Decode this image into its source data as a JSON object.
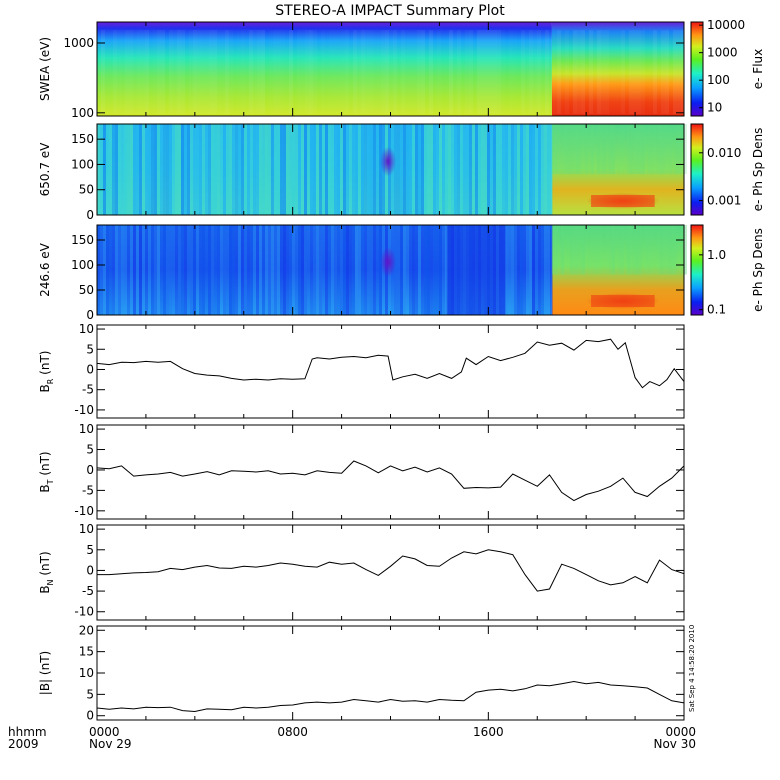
{
  "title": "STEREO-A IMPACT Summary Plot",
  "footer": {
    "left_line1": "hhmm",
    "left_line2": "2009"
  },
  "timestamp_note": "Sat Sep  4 14:58:20 2010",
  "chart_data": [
    {
      "type": "heatmap",
      "name": "swea",
      "ylabel": "SWEA (eV)",
      "colorbar_label": "e- Flux",
      "y_scale": "log",
      "ylim": [
        90,
        2000
      ],
      "yticks": [
        100,
        1000
      ],
      "ytick_labels": [
        "100",
        "1000"
      ],
      "colorbar_scale": "log",
      "colorbar_range": [
        5,
        13000
      ],
      "colorbar_ticks": [
        10,
        100,
        1000,
        10000
      ],
      "colorbar_tick_labels": [
        "10",
        "100",
        "1000",
        "10000"
      ],
      "transition_time_hours": 18.6
    },
    {
      "type": "heatmap",
      "name": "pad650",
      "ylabel": "650.7 eV",
      "colorbar_label": "e- Ph Sp Dens",
      "ylim": [
        0,
        180
      ],
      "yticks": [
        0,
        50,
        100,
        150
      ],
      "ytick_labels": [
        "0",
        "50",
        "100",
        "150"
      ],
      "colorbar_scale": "log",
      "colorbar_range": [
        0.0005,
        0.04
      ],
      "colorbar_ticks": [
        0.001,
        0.01
      ],
      "colorbar_tick_labels": [
        "0.001",
        "0.010"
      ],
      "transition_time_hours": 18.6
    },
    {
      "type": "heatmap",
      "name": "pad246",
      "ylabel": "246.6 eV",
      "colorbar_label": "e- Ph Sp Dens",
      "ylim": [
        0,
        180
      ],
      "yticks": [
        0,
        50,
        100,
        150
      ],
      "ytick_labels": [
        "0",
        "50",
        "100",
        "150"
      ],
      "colorbar_scale": "log",
      "colorbar_range": [
        0.08,
        3.5
      ],
      "colorbar_ticks": [
        0.1,
        1.0
      ],
      "colorbar_tick_labels": [
        "0.1",
        "1.0"
      ],
      "transition_time_hours": 18.6
    },
    {
      "type": "line",
      "name": "br",
      "ylabel_main": "B",
      "ylabel_sub": "R",
      "ylabel_unit": "(nT)",
      "ylim": [
        -12,
        11
      ],
      "yticks": [
        -10,
        -5,
        0,
        5,
        10
      ],
      "ytick_labels": [
        "-10",
        "-5",
        "0",
        "5",
        "10"
      ],
      "x": [
        0,
        0.5,
        1,
        1.5,
        2,
        2.5,
        3,
        3.5,
        4,
        4.5,
        5,
        5.5,
        6,
        6.5,
        7,
        7.5,
        8,
        8.5,
        8.8,
        9,
        9.5,
        10,
        10.5,
        11,
        11.5,
        11.9,
        12.1,
        12.5,
        13,
        13.5,
        14,
        14.5,
        14.9,
        15.1,
        15.5,
        16,
        16.5,
        17,
        17.5,
        18,
        18.5,
        19,
        19.5,
        20,
        20.5,
        21,
        21.3,
        21.6,
        22,
        22.3,
        22.6,
        23,
        23.3,
        23.6,
        24
      ],
      "y": [
        1.5,
        1.2,
        1.8,
        1.7,
        2.0,
        1.8,
        2.0,
        0.2,
        -1.0,
        -1.4,
        -1.6,
        -2.2,
        -2.6,
        -2.4,
        -2.6,
        -2.3,
        -2.4,
        -2.3,
        2.6,
        2.9,
        2.6,
        3.0,
        3.2,
        2.9,
        3.5,
        3.3,
        -2.6,
        -1.8,
        -1.2,
        -2.2,
        -1.0,
        -2.2,
        -0.6,
        2.8,
        1.2,
        3.2,
        2.2,
        3.0,
        4.0,
        6.8,
        6.0,
        6.5,
        4.8,
        7.2,
        6.9,
        7.5,
        5.0,
        6.6,
        -2.0,
        -4.5,
        -3.0,
        -4.0,
        -2.5,
        0.2,
        -3.0
      ]
    },
    {
      "type": "line",
      "name": "bt",
      "ylabel_main": "B",
      "ylabel_sub": "T",
      "ylabel_unit": "(nT)",
      "ylim": [
        -12,
        11
      ],
      "yticks": [
        -10,
        -5,
        0,
        5,
        10
      ],
      "ytick_labels": [
        "-10",
        "-5",
        "0",
        "5",
        "10"
      ],
      "x": [
        0,
        0.5,
        1,
        1.5,
        2,
        2.5,
        3,
        3.5,
        4,
        4.5,
        5,
        5.5,
        6,
        6.5,
        7,
        7.5,
        8,
        8.5,
        9,
        9.5,
        10,
        10.5,
        11,
        11.5,
        12,
        12.5,
        13,
        13.5,
        14,
        14.5,
        15,
        15.5,
        16,
        16.5,
        17,
        17.5,
        18,
        18.5,
        19,
        19.5,
        20,
        20.5,
        21,
        21.5,
        22,
        22.5,
        23,
        23.5,
        24
      ],
      "y": [
        0.5,
        0.3,
        1.0,
        -1.5,
        -1.2,
        -1.0,
        -0.6,
        -1.5,
        -1.0,
        -0.4,
        -1.2,
        -0.2,
        -0.3,
        -0.5,
        -0.2,
        -1.0,
        -0.8,
        -1.2,
        -0.2,
        -0.6,
        -0.8,
        2.2,
        1.0,
        -0.7,
        1.0,
        -0.2,
        0.7,
        -0.5,
        0.5,
        -1.0,
        -4.5,
        -4.3,
        -4.4,
        -4.2,
        -1.0,
        -2.5,
        -4.0,
        -1.2,
        -5.5,
        -7.5,
        -6.0,
        -5.2,
        -4.0,
        -2.0,
        -5.5,
        -6.5,
        -4.0,
        -2.0,
        1.0
      ]
    },
    {
      "type": "line",
      "name": "bn",
      "ylabel_main": "B",
      "ylabel_sub": "N",
      "ylabel_unit": "(nT)",
      "ylim": [
        -12,
        11
      ],
      "yticks": [
        -10,
        -5,
        0,
        5,
        10
      ],
      "ytick_labels": [
        "-10",
        "-5",
        "0",
        "5",
        "10"
      ],
      "x": [
        0,
        0.5,
        1,
        1.5,
        2,
        2.5,
        3,
        3.5,
        4,
        4.5,
        5,
        5.5,
        6,
        6.5,
        7,
        7.5,
        8,
        8.5,
        9,
        9.5,
        10,
        10.5,
        11,
        11.5,
        12,
        12.5,
        13,
        13.5,
        14,
        14.5,
        15,
        15.5,
        16,
        16.5,
        17,
        17.5,
        18,
        18.5,
        19,
        19.5,
        20,
        20.5,
        21,
        21.5,
        22,
        22.5,
        23,
        23.5,
        24
      ],
      "y": [
        -1.0,
        -1.0,
        -0.8,
        -0.6,
        -0.5,
        -0.3,
        0.5,
        0.2,
        0.8,
        1.2,
        0.6,
        0.5,
        1.0,
        0.8,
        1.2,
        1.8,
        1.5,
        1.0,
        0.8,
        2.0,
        1.5,
        1.8,
        0.2,
        -1.2,
        1.0,
        3.5,
        2.8,
        1.2,
        1.0,
        3.0,
        4.5,
        4.0,
        5.0,
        4.5,
        3.8,
        -1.0,
        -5.0,
        -4.5,
        1.5,
        0.5,
        -1.0,
        -2.5,
        -3.5,
        -3.0,
        -1.5,
        -3.0,
        2.5,
        0.2,
        -0.8
      ]
    },
    {
      "type": "line",
      "name": "bmag",
      "ylabel_main": "|B|",
      "ylabel_sub": "",
      "ylabel_unit": "(nT)",
      "ylim": [
        -1,
        21
      ],
      "yticks": [
        0,
        5,
        10,
        15,
        20
      ],
      "ytick_labels": [
        "0",
        "5",
        "10",
        "15",
        "20"
      ],
      "x": [
        0,
        0.5,
        1,
        1.5,
        2,
        2.5,
        3,
        3.5,
        4,
        4.5,
        5,
        5.5,
        6,
        6.5,
        7,
        7.5,
        8,
        8.5,
        9,
        9.5,
        10,
        10.5,
        11,
        11.5,
        12,
        12.5,
        13,
        13.5,
        14,
        14.5,
        15,
        15.5,
        16,
        16.5,
        17,
        17.5,
        18,
        18.5,
        19,
        19.5,
        20,
        20.5,
        21,
        21.5,
        22,
        22.5,
        23,
        23.5,
        24
      ],
      "y": [
        1.8,
        1.5,
        1.8,
        1.6,
        2.0,
        1.9,
        2.0,
        1.2,
        1.0,
        1.6,
        1.5,
        1.4,
        2.0,
        1.8,
        2.0,
        2.4,
        2.5,
        3.0,
        3.2,
        3.0,
        3.2,
        3.8,
        3.5,
        3.2,
        3.8,
        3.4,
        3.5,
        3.2,
        3.8,
        3.6,
        3.5,
        5.5,
        6.0,
        6.2,
        5.8,
        6.3,
        7.2,
        7.0,
        7.5,
        8.0,
        7.5,
        7.8,
        7.2,
        7.0,
        6.8,
        6.5,
        5.0,
        3.5,
        3.0
      ]
    }
  ],
  "x_axis": {
    "range_hours": [
      0,
      24
    ],
    "tick_hours": [
      0,
      8,
      16,
      24
    ],
    "tick_labels_line1": [
      "0000",
      "0800",
      "1600",
      "0000"
    ],
    "tick_labels_line2": [
      "Nov 29",
      "",
      "",
      "Nov 30"
    ]
  }
}
